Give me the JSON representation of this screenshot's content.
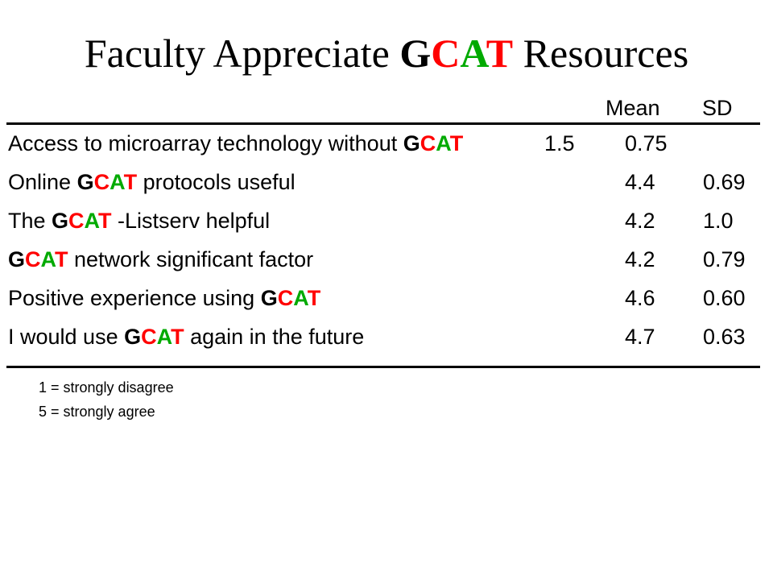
{
  "title": {
    "prefix": "Faculty Appreciate ",
    "brand_letters": [
      "G",
      "C",
      "A",
      "T"
    ],
    "suffix": " Resources"
  },
  "brand_colors": {
    "G": "#000000",
    "C": "#ff0000",
    "A": "#00aa00",
    "T": "#ff0000"
  },
  "columns": {
    "mean": "Mean",
    "sd": "SD"
  },
  "rows": [
    {
      "parts": [
        "Access to microarray technology without ",
        "GCAT"
      ],
      "mean": "1.5",
      "sd": "0.75"
    },
    {
      "parts": [
        "Online ",
        "GCAT",
        " protocols useful"
      ],
      "mean": "4.4",
      "sd": "0.69"
    },
    {
      "parts": [
        "The ",
        "GCAT",
        " -Listserv helpful"
      ],
      "mean": "4.2",
      "sd": "1.0"
    },
    {
      "parts": [
        "GCAT",
        " network significant factor"
      ],
      "mean": "4.2",
      "sd": "0.79"
    },
    {
      "parts": [
        "Positive experience using ",
        "GCAT"
      ],
      "mean": "4.6",
      "sd": "0.60"
    },
    {
      "parts": [
        "I would use ",
        "GCAT",
        " again in the future"
      ],
      "mean": "4.7",
      "sd": "0.63"
    }
  ],
  "legend": [
    "1 = strongly disagree",
    "5 = strongly agree"
  ]
}
